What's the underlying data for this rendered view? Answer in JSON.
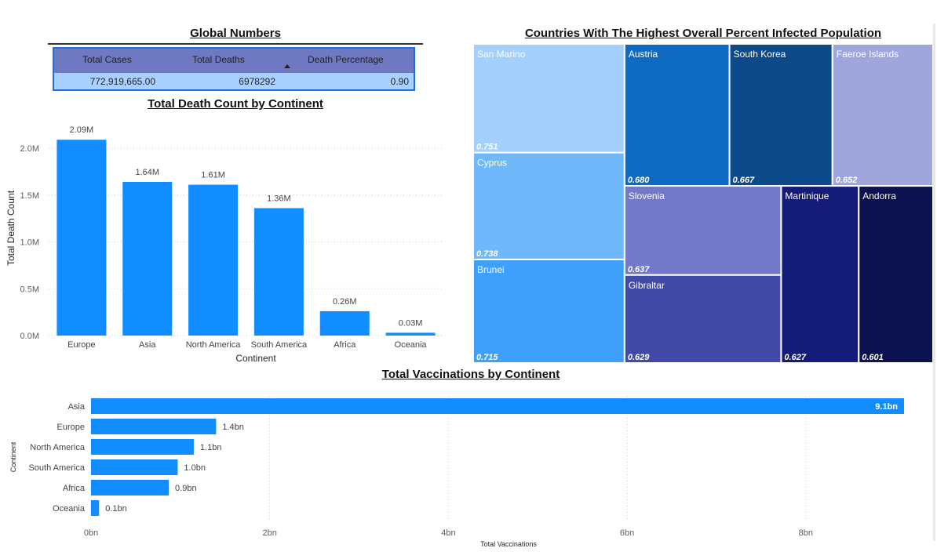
{
  "global": {
    "title": "Global Numbers",
    "headers": [
      "Total Cases",
      "Total Deaths",
      "Death Percentage"
    ],
    "values": [
      "772,919,665.00",
      "6978292",
      "0.90"
    ]
  },
  "death_title": "Total Death Count by Continent",
  "treemap_title": "Countries With The Highest Overall Percent Infected Population",
  "vacc_title": "Total Vaccinations by Continent",
  "colors": {
    "bar": "#118dff",
    "table_header": "#6f79c2",
    "table_row": "#a8d1ff",
    "table_border": "#1f6fe0"
  },
  "chart_data": [
    {
      "type": "bar",
      "title": "Total Death Count by Continent",
      "categories": [
        "Europe",
        "Asia",
        "North America",
        "South America",
        "Africa",
        "Oceania"
      ],
      "values": [
        2.09,
        1.64,
        1.61,
        1.36,
        0.26,
        0.03
      ],
      "data_labels": [
        "2.09M",
        "1.64M",
        "1.61M",
        "1.36M",
        "0.26M",
        "0.03M"
      ],
      "unit": "M",
      "xlabel": "Continent",
      "ylabel": "Total Death Count",
      "ylim": [
        0,
        2.0
      ],
      "yticks": [
        0,
        0.5,
        1.0,
        1.5,
        2.0
      ],
      "ytick_labels": [
        "0.0M",
        "0.5M",
        "1.0M",
        "1.5M",
        "2.0M"
      ],
      "grid": true
    },
    {
      "type": "treemap",
      "title": "Countries With The Highest Overall Percent Infected Population",
      "items": [
        {
          "name": "San Marino",
          "value": 0.751,
          "label": "0.751",
          "color": "#a3d0fd"
        },
        {
          "name": "Cyprus",
          "value": 0.738,
          "label": "0.738",
          "color": "#6fb8fa"
        },
        {
          "name": "Brunei",
          "value": 0.715,
          "label": "0.715",
          "color": "#3fa0fb"
        },
        {
          "name": "Austria",
          "value": 0.68,
          "label": "0.680",
          "color": "#0f6bc2"
        },
        {
          "name": "South Korea",
          "value": 0.667,
          "label": "0.667",
          "color": "#0d4a8a"
        },
        {
          "name": "Faeroe Islands",
          "value": 0.652,
          "label": "0.652",
          "color": "#9fa6dc"
        },
        {
          "name": "Slovenia",
          "value": 0.637,
          "label": "0.637",
          "color": "#7179c8"
        },
        {
          "name": "Gibraltar",
          "value": 0.629,
          "label": "0.629",
          "color": "#4249a6"
        },
        {
          "name": "Martinique",
          "value": 0.627,
          "label": "0.627",
          "color": "#141b78"
        },
        {
          "name": "Andorra",
          "value": 0.601,
          "label": "0.601",
          "color": "#0c1150"
        }
      ]
    },
    {
      "type": "bar",
      "orientation": "horizontal",
      "title": "Total Vaccinations by Continent",
      "categories": [
        "Asia",
        "Europe",
        "North America",
        "South America",
        "Africa",
        "Oceania"
      ],
      "values": [
        9.1,
        1.4,
        1.15,
        0.97,
        0.87,
        0.09
      ],
      "data_labels": [
        "9.1bn",
        "1.4bn",
        "1.1bn",
        "1.0bn",
        "0.9bn",
        "0.1bn"
      ],
      "xlabel": "Total Vaccinations",
      "ylabel": "Continent",
      "xlim": [
        0,
        9.1
      ],
      "xticks": [
        0,
        2,
        4,
        6,
        8
      ],
      "xtick_labels": [
        "0bn",
        "2bn",
        "4bn",
        "6bn",
        "8bn"
      ],
      "grid": true
    }
  ]
}
